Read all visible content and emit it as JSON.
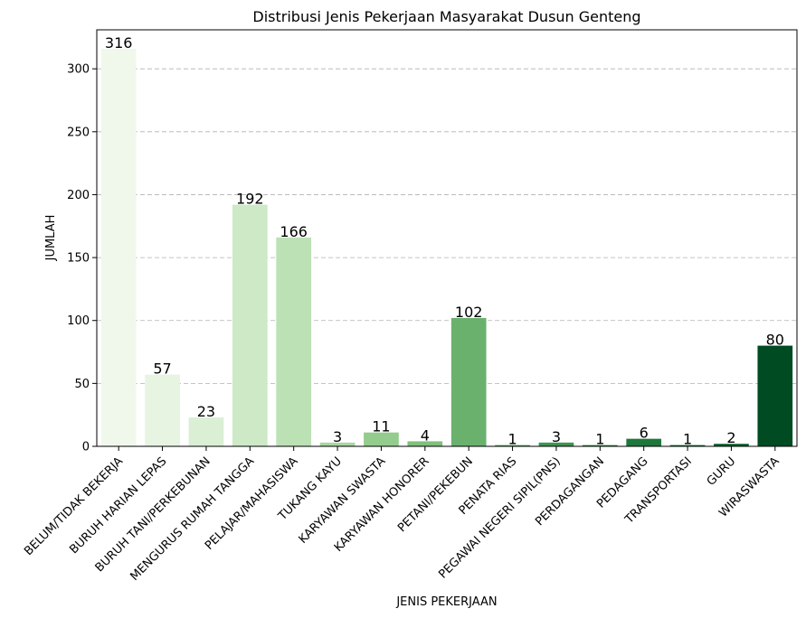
{
  "chart_data": {
    "type": "bar",
    "title": "Distribusi Jenis Pekerjaan Masyarakat Dusun Genteng",
    "xlabel": "JENIS PEKERJAAN",
    "ylabel": "JUMLAH",
    "categories": [
      "BELUM/TIDAK BEKERJA",
      "BURUH HARIAN LEPAS",
      "BURUH TANI/PERKEBUNAN",
      "MENGURUS RUMAH TANGGA",
      "PELAJAR/MAHASISWA",
      "TUKANG KAYU",
      "KARYAWAN SWASTA",
      "KARYAWAN HONORER",
      "PETANI/PEKEBUN",
      "PENATA RIAS",
      "PEGAWAI NEGERI SIPIL(PNS)",
      "PERDAGANGAN",
      "PEDAGANG",
      "TRANSPORTASI",
      "GURU",
      "WIRASWASTA"
    ],
    "values": [
      316,
      57,
      23,
      192,
      166,
      3,
      11,
      4,
      102,
      1,
      3,
      1,
      6,
      1,
      2,
      80
    ],
    "colors": [
      "#f0f8ec",
      "#e7f4e2",
      "#daefd4",
      "#cde9c6",
      "#bce1b5",
      "#a8d7a2",
      "#94cc8d",
      "#7fc07b",
      "#6ab16e",
      "#52a35e",
      "#3e9550",
      "#2d8745",
      "#1f783b",
      "#126b31",
      "#075e2a",
      "#004b22"
    ],
    "ylim": [
      0,
      331
    ],
    "yticks": [
      0,
      50,
      100,
      150,
      200,
      250,
      300
    ],
    "grid": "y"
  }
}
